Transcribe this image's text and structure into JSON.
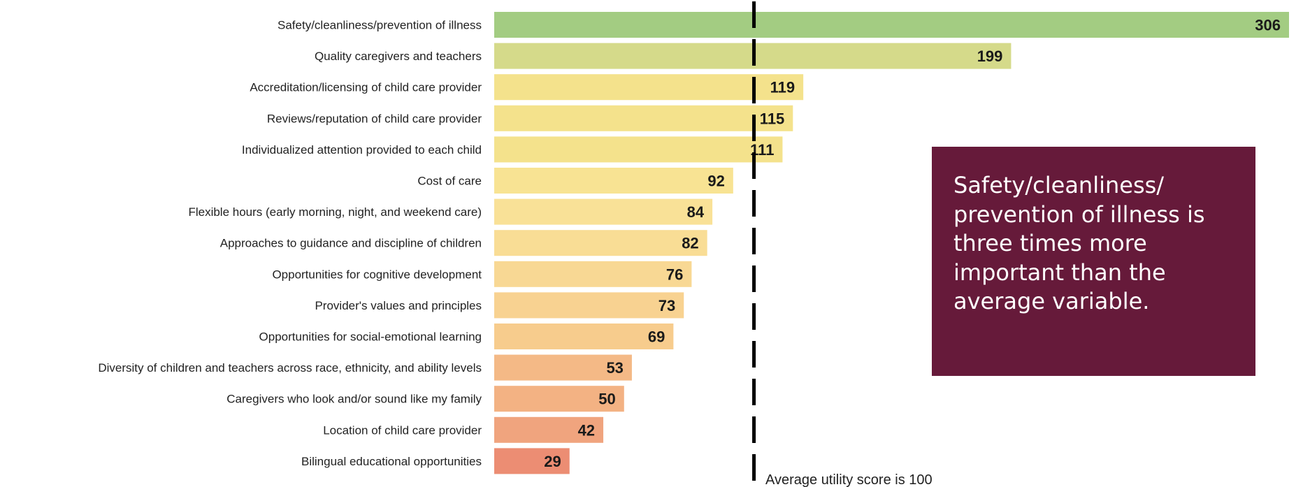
{
  "chart_data": {
    "type": "bar",
    "orientation": "horizontal",
    "categories": [
      "Safety/cleanliness/prevention of illness",
      "Quality caregivers and teachers",
      "Accreditation/licensing of child care provider",
      "Reviews/reputation of child care provider",
      "Individualized attention provided to each child",
      "Cost of care",
      "Flexible hours (early morning, night, and weekend care)",
      "Approaches to guidance and discipline of children",
      "Opportunities for cognitive development",
      "Provider's values and principles",
      "Opportunities for social-emotional learning",
      "Diversity of children and teachers across race, ethnicity, and ability levels",
      "Caregivers who look and/or sound like my family",
      "Location of child care provider",
      "Bilingual educational opportunities"
    ],
    "values": [
      306,
      199,
      119,
      115,
      111,
      92,
      84,
      82,
      76,
      73,
      69,
      53,
      50,
      42,
      29
    ],
    "xlim": [
      0,
      306
    ],
    "reference_line": {
      "value": 100,
      "style": "dashed",
      "color": "#000000",
      "label": "Average utility score is 100"
    },
    "grid": false,
    "bar_colors": [
      "#a3cc82",
      "#d5da8a",
      "#f4e28c",
      "#f4e28c",
      "#f4e28c",
      "#f8e393",
      "#f9e197",
      "#f9dd95",
      "#f8d894",
      "#f8d291",
      "#f7cc8d",
      "#f4b986",
      "#f3b283",
      "#f0a47e",
      "#ec8d73"
    ]
  },
  "callout": {
    "text": "Safety/cleanliness/ prevention of illness is three times more important than the average variable.",
    "background": "#661a3a",
    "text_color": "#ffffff"
  }
}
